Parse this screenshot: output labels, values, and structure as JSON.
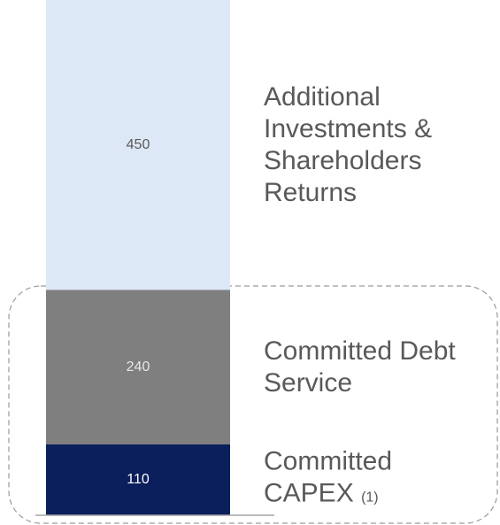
{
  "chart_data": {
    "type": "bar",
    "stacked": true,
    "categories": [
      null
    ],
    "series": [
      {
        "name": "Committed CAPEX",
        "note": "(1)",
        "color": "#0a1f5c",
        "label_color": "#ffffff",
        "values": [
          110
        ]
      },
      {
        "name": "Committed Debt Service",
        "color": "#7f7f7f",
        "label_color": "#e6e6e6",
        "values": [
          240
        ]
      },
      {
        "name": "Additional Investments & Shareholders Returns",
        "color": "#dce8f5",
        "label_color": "#595959",
        "values": [
          450
        ]
      }
    ],
    "ylim": [
      0,
      800
    ]
  }
}
